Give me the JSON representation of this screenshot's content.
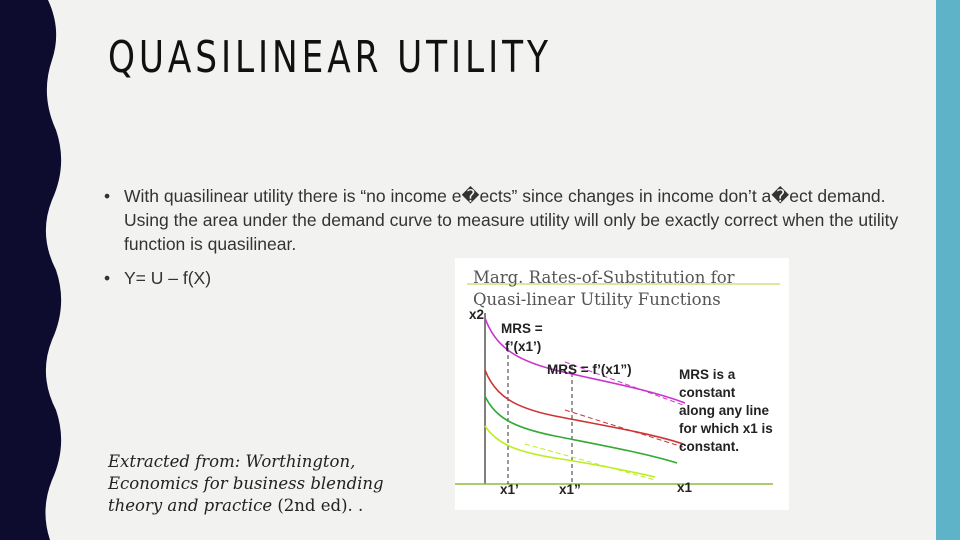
{
  "slide": {
    "title": "QUASILINEAR UTILITY",
    "bullets": [
      "With quasilinear utility there is “no income e�ects” since changes in income don’t a�ect demand. Using the area under the demand curve to measure utility will only be exactly correct when the utility function is quasilinear.",
      "Y= U – f(X)"
    ],
    "bullet_symbol": "•",
    "credit": {
      "prefix": "Extracted from: Worthington, Economics for business blending theory and practice",
      "suffix": " (2nd ed). ."
    }
  },
  "figure": {
    "title": "Marg. Rates-of-Substitution for Quasi-linear Utility Functions",
    "y_axis_label": "x2",
    "x_axis_label": "x1",
    "x_tick_1": "x1’",
    "x_tick_2": "x1”",
    "mrs_1": [
      "MRS =",
      "f’(x1’)"
    ],
    "mrs_2": "MRS = f’(x1”)",
    "note": [
      "MRS is a",
      "constant",
      "along any line",
      "for which x1 is",
      "constant."
    ],
    "curve_colors": [
      "#cc33cc",
      "#cc3333",
      "#33aa33",
      "#bbee22"
    ]
  },
  "colors": {
    "left_band": "#0d0c2e",
    "right_band": "#5fb3c8",
    "background": "#f2f2f0"
  }
}
